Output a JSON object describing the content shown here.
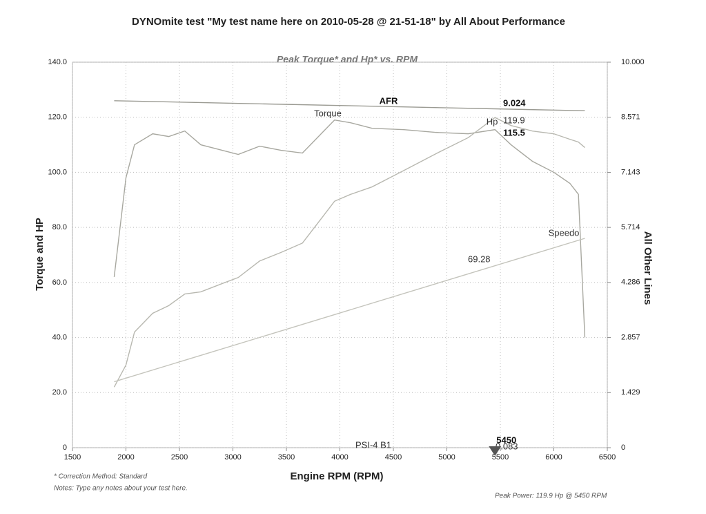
{
  "chart_data": {
    "type": "line",
    "title": "DYNOmite test \"My test name here on 2010-05-28 @ 21-51-18\" by All About Performance",
    "subtitle": "Peak Torque* and Hp* vs. RPM",
    "x_label": "Engine RPM (RPM)",
    "y_label": "Torque and HP",
    "y2_label": "All Other Lines",
    "x": [
      1890,
      2000,
      2080,
      2250,
      2400,
      2550,
      2700,
      2900,
      3050,
      3250,
      3450,
      3650,
      3850,
      3950,
      4100,
      4300,
      4600,
      4900,
      5200,
      5450,
      5600,
      5800,
      6000,
      6150,
      6230,
      6290
    ],
    "series": [
      {
        "name": "Torque",
        "color": "#a8a8a0",
        "values": [
          62,
          98,
          110,
          114,
          113,
          115,
          110,
          108,
          106.5,
          109.5,
          108,
          107,
          115,
          119,
          118,
          116,
          115.5,
          114.5,
          114,
          115.5,
          110,
          104,
          100,
          96,
          92,
          40
        ]
      },
      {
        "name": "Hp",
        "color": "#b8b8b0",
        "values": [
          22,
          30,
          42,
          48.8,
          51.6,
          55.8,
          56.6,
          59.6,
          61.8,
          67.8,
          70.9,
          74.3,
          84.4,
          89.5,
          92,
          94.7,
          100.7,
          106.8,
          112.6,
          119.9,
          117,
          115,
          114,
          112,
          111,
          109
        ]
      },
      {
        "name": "AFR",
        "color": "#9a9a92",
        "axis": "y2",
        "values": [
          9.0,
          null,
          null,
          null,
          null,
          null,
          null,
          null,
          null,
          null,
          null,
          null,
          null,
          null,
          null,
          null,
          null,
          null,
          null,
          null,
          null,
          null,
          null,
          null,
          null,
          8.74
        ]
      },
      {
        "name": "Speedo",
        "color": "#c4c4bc",
        "axis": "y2",
        "values": [
          1.71,
          null,
          null,
          null,
          null,
          null,
          null,
          null,
          null,
          null,
          null,
          null,
          null,
          null,
          null,
          null,
          null,
          null,
          null,
          null,
          null,
          null,
          null,
          null,
          null,
          5.43
        ]
      }
    ],
    "xlim": [
      1500,
      6500
    ],
    "xticks": [
      1500,
      2000,
      2500,
      3000,
      3500,
      4000,
      4500,
      5000,
      5500,
      6000,
      6500
    ],
    "ylim": [
      0,
      140
    ],
    "yticks": [
      0,
      {
        "value": 20,
        "label": "20.0"
      },
      {
        "value": 40,
        "label": "40.0"
      },
      {
        "value": 60,
        "label": "60.0"
      },
      {
        "value": 80,
        "label": "80.0"
      },
      {
        "value": 100,
        "label": "100.0"
      },
      {
        "value": 120,
        "label": "120.0"
      },
      {
        "value": 140,
        "label": "140.0"
      }
    ],
    "y2lim": [
      0,
      10
    ],
    "y2ticks": [
      0,
      1.429,
      2.857,
      4.286,
      5.714,
      7.143,
      8.571,
      {
        "value": 10,
        "label": "10.000"
      }
    ],
    "grid": true,
    "annotations": [
      "119.9",
      "115.5",
      "9.024",
      "69.28",
      "PSI-4 B1",
      "0.083"
    ],
    "peak_rpm": 5450,
    "notes": [
      "* Correction Method: Standard",
      "Notes: Type any notes about your test here.",
      "Peak Power: 119.9 Hp @ 5450 RPM"
    ]
  }
}
